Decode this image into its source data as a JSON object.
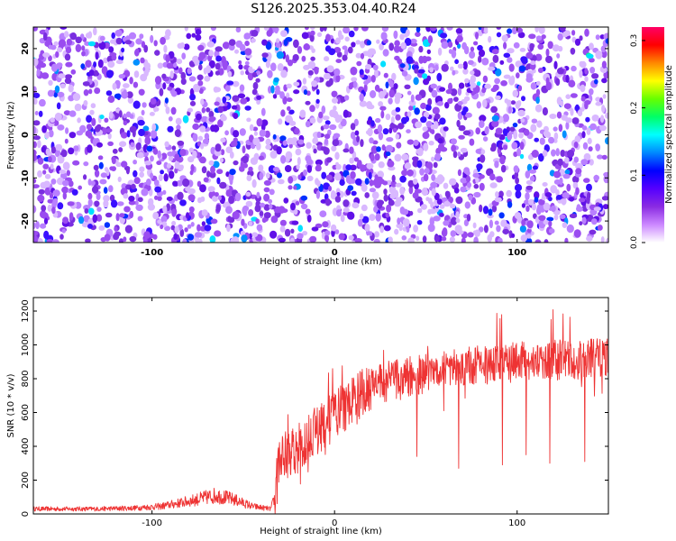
{
  "title": "S126.2025.353.04.40.R24",
  "chart_data": [
    {
      "type": "heatmap",
      "xlabel": "Height of straight line (km)",
      "ylabel": "Frequency (Hz)",
      "xlim": [
        -165,
        150
      ],
      "ylim": [
        -25,
        25
      ],
      "x_ticks": [
        -100,
        0,
        100
      ],
      "y_ticks": [
        -20,
        -10,
        0,
        10,
        20
      ],
      "colorbar": {
        "label": "Normalized spectral amplitude",
        "range": [
          0.0,
          0.32
        ],
        "ticks": [
          "0.0",
          "0.1",
          "0.2",
          "0.3"
        ],
        "colors": [
          "#ffffff",
          "#cc88ff",
          "#8a2be2",
          "#5500ff",
          "#0000ff",
          "#0088ff",
          "#00ffff",
          "#00ff66",
          "#66ff00",
          "#ffff00",
          "#ff8800",
          "#ff0000",
          "#ff0066"
        ]
      }
    },
    {
      "type": "line",
      "xlabel": "Height of straight line (km)",
      "ylabel": "SNR (10 * v/v)",
      "xlim": [
        -165,
        150
      ],
      "ylim": [
        0,
        1280
      ],
      "x_ticks": [
        -100,
        0,
        100
      ],
      "y_ticks": [
        0,
        200,
        400,
        600,
        800,
        1000,
        1200
      ],
      "color": "#ee3333",
      "trend": [
        {
          "x": -165,
          "y": 30
        },
        {
          "x": -130,
          "y": 30
        },
        {
          "x": -110,
          "y": 35
        },
        {
          "x": -95,
          "y": 45
        },
        {
          "x": -80,
          "y": 75
        },
        {
          "x": -65,
          "y": 110
        },
        {
          "x": -55,
          "y": 85
        },
        {
          "x": -45,
          "y": 45
        },
        {
          "x": -35,
          "y": 30
        },
        {
          "x": -33,
          "y": 90
        },
        {
          "x": -30,
          "y": 320
        },
        {
          "x": -25,
          "y": 360
        },
        {
          "x": -20,
          "y": 390
        },
        {
          "x": -15,
          "y": 440
        },
        {
          "x": -10,
          "y": 490
        },
        {
          "x": -5,
          "y": 530
        },
        {
          "x": 0,
          "y": 580
        },
        {
          "x": 5,
          "y": 630
        },
        {
          "x": 10,
          "y": 680
        },
        {
          "x": 15,
          "y": 720
        },
        {
          "x": 20,
          "y": 755
        },
        {
          "x": 30,
          "y": 790
        },
        {
          "x": 40,
          "y": 810
        },
        {
          "x": 50,
          "y": 830
        },
        {
          "x": 60,
          "y": 845
        },
        {
          "x": 70,
          "y": 860
        },
        {
          "x": 80,
          "y": 880
        },
        {
          "x": 90,
          "y": 890
        },
        {
          "x": 100,
          "y": 900
        },
        {
          "x": 110,
          "y": 905
        },
        {
          "x": 120,
          "y": 910
        },
        {
          "x": 130,
          "y": 915
        },
        {
          "x": 140,
          "y": 920
        },
        {
          "x": 150,
          "y": 925
        }
      ],
      "dips": [
        {
          "x": 45,
          "y": 340
        },
        {
          "x": 68,
          "y": 270
        },
        {
          "x": 92,
          "y": 290
        },
        {
          "x": 105,
          "y": 350
        },
        {
          "x": 118,
          "y": 300
        },
        {
          "x": 137,
          "y": 310
        }
      ]
    }
  ]
}
